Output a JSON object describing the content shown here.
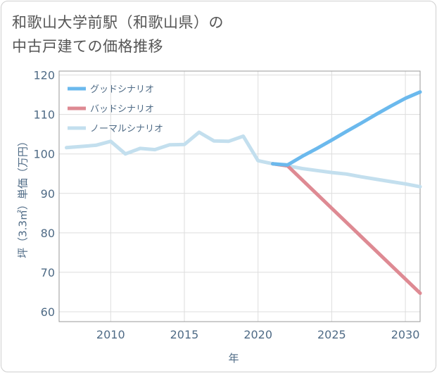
{
  "chart_data": {
    "type": "line",
    "title": [
      "和歌山大学前駅（和歌山県）の",
      "中古戸建ての価格推移"
    ],
    "xlabel": "年",
    "ylabel": "坪（3.3㎡）単価（万円）",
    "xlim": [
      2006.5,
      2031
    ],
    "ylim": [
      57.5,
      121
    ],
    "xticks": [
      2010,
      2015,
      2020,
      2025,
      2030
    ],
    "yticks": [
      60,
      70,
      80,
      90,
      100,
      110,
      120
    ],
    "grid": true,
    "legend_position": "top-left",
    "series": [
      {
        "name": "ノーマルシナリオ",
        "color": "#c3dfee",
        "x": [
          2007,
          2008,
          2009,
          2010,
          2011,
          2012,
          2013,
          2014,
          2015,
          2016,
          2017,
          2018,
          2019,
          2020,
          2021,
          2022,
          2023,
          2024,
          2025,
          2026,
          2027,
          2028,
          2029,
          2030,
          2031
        ],
        "y": [
          101.6,
          101.9,
          102.2,
          103.2,
          100.0,
          101.4,
          101.1,
          102.3,
          102.4,
          105.5,
          103.3,
          103.2,
          104.5,
          98.3,
          97.5,
          97.0,
          96.3,
          95.8,
          95.3,
          94.9,
          94.2,
          93.6,
          93.0,
          92.4,
          91.7
        ]
      },
      {
        "name": "バッドシナリオ",
        "color": "#de8a93",
        "x": [
          2021,
          2022,
          2031
        ],
        "y": [
          97.5,
          97.0,
          64.7
        ]
      },
      {
        "name": "グッドシナリオ",
        "color": "#6bb9ed",
        "x": [
          2021,
          2022,
          2023,
          2024,
          2025,
          2026,
          2027,
          2028,
          2029,
          2030,
          2031
        ],
        "y": [
          97.5,
          97.2,
          99.4,
          101.4,
          103.5,
          105.7,
          107.8,
          110.0,
          112.1,
          114.1,
          115.7
        ]
      }
    ],
    "legend": [
      "グッドシナリオ",
      "バッドシナリオ",
      "ノーマルシナリオ"
    ]
  }
}
